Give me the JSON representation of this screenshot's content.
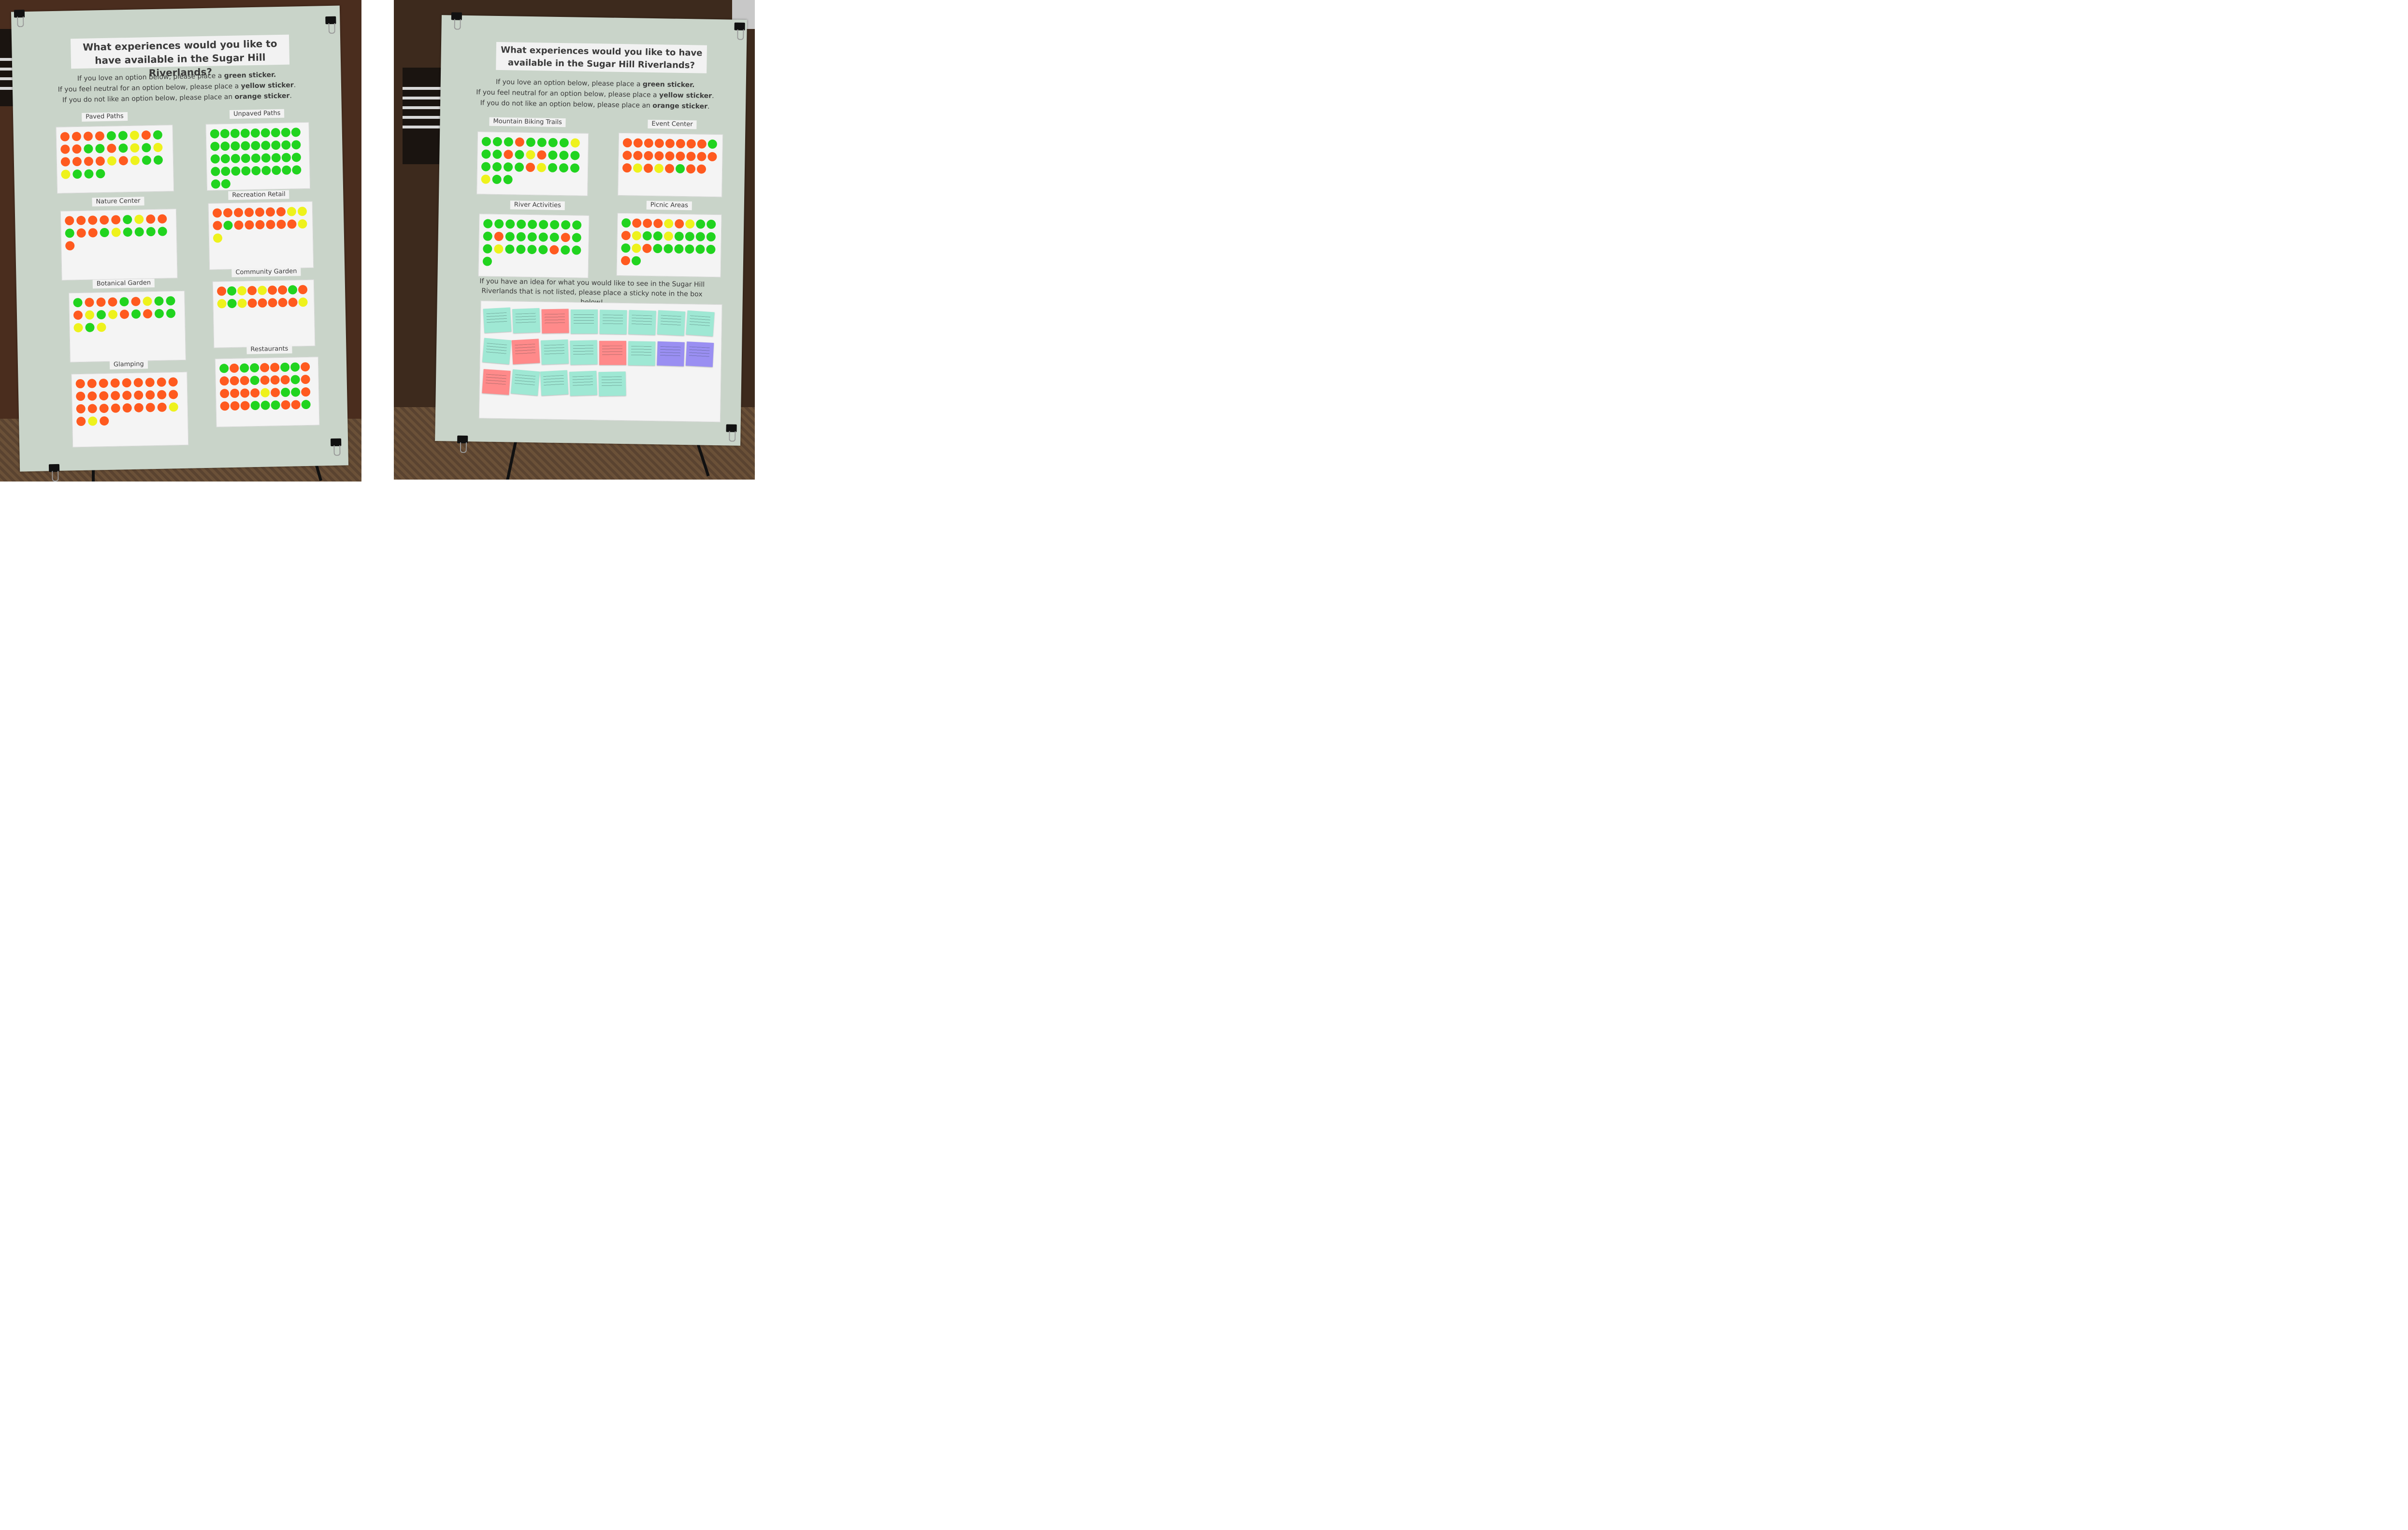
{
  "posters": {
    "left": {
      "title": "What experiences would you like to have available in the Sugar Hill Riverlands?",
      "instructions": [
        {
          "before": "If you love an option below, please place a ",
          "bold": "green sticker.",
          "after": ""
        },
        {
          "before": "If you feel neutral for an option below, please place a ",
          "bold": "yellow sticker",
          "after": "."
        },
        {
          "before": "If you do not like an option below, please place an ",
          "bold": "orange sticker",
          "after": "."
        }
      ],
      "categories": [
        {
          "label": "Paved Paths",
          "dots": [
            "o",
            "o",
            "o",
            "o",
            "g",
            "g",
            "y",
            "o",
            "g",
            "o",
            "o",
            "g",
            "g",
            "o",
            "g",
            "y",
            "g",
            "y",
            "o",
            "o",
            "o",
            "o",
            "y",
            "o",
            "y",
            "g",
            "g",
            "y",
            "g",
            "g",
            "g"
          ]
        },
        {
          "label": "Unpaved Paths",
          "dots": [
            "g",
            "g",
            "g",
            "g",
            "g",
            "g",
            "g",
            "g",
            "g",
            "g",
            "g",
            "g",
            "g",
            "g",
            "g",
            "g",
            "g",
            "g",
            "g",
            "g",
            "g",
            "g",
            "g",
            "g",
            "g",
            "g",
            "g",
            "g",
            "g",
            "g",
            "g",
            "g",
            "g",
            "g",
            "g",
            "g",
            "g",
            "g"
          ]
        },
        {
          "label": "Nature Center",
          "dots": [
            "o",
            "o",
            "o",
            "o",
            "o",
            "g",
            "y",
            "o",
            "o",
            "g",
            "o",
            "o",
            "g",
            "y",
            "g",
            "g",
            "g",
            "g",
            "o"
          ]
        },
        {
          "label": "Recreation Retail",
          "dots": [
            "o",
            "o",
            "o",
            "o",
            "o",
            "o",
            "o",
            "y",
            "y",
            "o",
            "g",
            "o",
            "o",
            "o",
            "o",
            "o",
            "o",
            "y",
            "y"
          ]
        },
        {
          "label": "Botanical Garden",
          "dots": [
            "g",
            "o",
            "o",
            "o",
            "g",
            "o",
            "y",
            "g",
            "g",
            "o",
            "y",
            "g",
            "y",
            "o",
            "g",
            "o",
            "g",
            "g",
            "y",
            "g",
            "y"
          ]
        },
        {
          "label": "Community Garden",
          "dots": [
            "o",
            "g",
            "y",
            "o",
            "y",
            "o",
            "o",
            "g",
            "o",
            "y",
            "g",
            "y",
            "o",
            "o",
            "o",
            "o",
            "o",
            "y"
          ]
        },
        {
          "label": "Glamping",
          "dots": [
            "o",
            "o",
            "o",
            "o",
            "o",
            "o",
            "o",
            "o",
            "o",
            "o",
            "o",
            "o",
            "o",
            "o",
            "o",
            "o",
            "o",
            "o",
            "o",
            "o",
            "o",
            "o",
            "o",
            "o",
            "o",
            "o",
            "y",
            "o",
            "y",
            "o"
          ]
        },
        {
          "label": "Restaurants",
          "dots": [
            "g",
            "o",
            "g",
            "g",
            "o",
            "o",
            "g",
            "g",
            "o",
            "o",
            "o",
            "o",
            "g",
            "o",
            "o",
            "o",
            "g",
            "o",
            "o",
            "o",
            "o",
            "o",
            "y",
            "o",
            "g",
            "g",
            "o",
            "o",
            "o",
            "o",
            "g",
            "g",
            "g",
            "o",
            "o",
            "g"
          ]
        }
      ]
    },
    "right": {
      "title": "What experiences would you like to have available in the Sugar Hill Riverlands?",
      "instructions": [
        {
          "before": "If you love an option below, please place a ",
          "bold": "green sticker.",
          "after": ""
        },
        {
          "before": "If you feel neutral for an option below, please place a ",
          "bold": "yellow sticker",
          "after": "."
        },
        {
          "before": "If you do not like an option below, please place an ",
          "bold": "orange sticker",
          "after": "."
        }
      ],
      "categories": [
        {
          "label": "Mountain Biking Trails",
          "dots": [
            "g",
            "g",
            "g",
            "o",
            "g",
            "g",
            "g",
            "g",
            "y",
            "g",
            "g",
            "o",
            "g",
            "y",
            "o",
            "g",
            "g",
            "g",
            "g",
            "g",
            "g",
            "g",
            "o",
            "y",
            "g",
            "g",
            "g",
            "y",
            "g",
            "g"
          ]
        },
        {
          "label": "Event Center",
          "dots": [
            "o",
            "o",
            "o",
            "o",
            "o",
            "o",
            "o",
            "o",
            "g",
            "o",
            "o",
            "o",
            "o",
            "o",
            "o",
            "o",
            "o",
            "o",
            "o",
            "y",
            "o",
            "y",
            "o",
            "g",
            "o",
            "o"
          ]
        },
        {
          "label": "River Activities",
          "dots": [
            "g",
            "g",
            "g",
            "g",
            "g",
            "g",
            "g",
            "g",
            "g",
            "g",
            "o",
            "g",
            "g",
            "g",
            "g",
            "g",
            "o",
            "g",
            "g",
            "y",
            "g",
            "g",
            "g",
            "g",
            "o",
            "g",
            "g",
            "g"
          ]
        },
        {
          "label": "Picnic Areas",
          "dots": [
            "g",
            "o",
            "o",
            "o",
            "y",
            "o",
            "y",
            "g",
            "g",
            "o",
            "y",
            "g",
            "g",
            "y",
            "g",
            "g",
            "g",
            "g",
            "g",
            "y",
            "o",
            "g",
            "g",
            "g",
            "g",
            "g",
            "g",
            "o",
            "g"
          ]
        }
      ],
      "prompt": "If you have an idea for what you would like to see in the Sugar Hill Riverlands that is not listed, please place a sticky note in the box below!",
      "sticky_notes": [
        "mint",
        "mint",
        "pink",
        "mint",
        "mint",
        "mint",
        "mint",
        "mint",
        "mint",
        "pink",
        "mint",
        "mint",
        "pink",
        "mint",
        "purple",
        "purple",
        "pink",
        "mint",
        "mint",
        "mint",
        "mint"
      ]
    }
  },
  "colors": {
    "green": "#21d41f",
    "yellow": "#eef21c",
    "orange": "#ff5a1f",
    "poster": "#c9d4c9"
  }
}
